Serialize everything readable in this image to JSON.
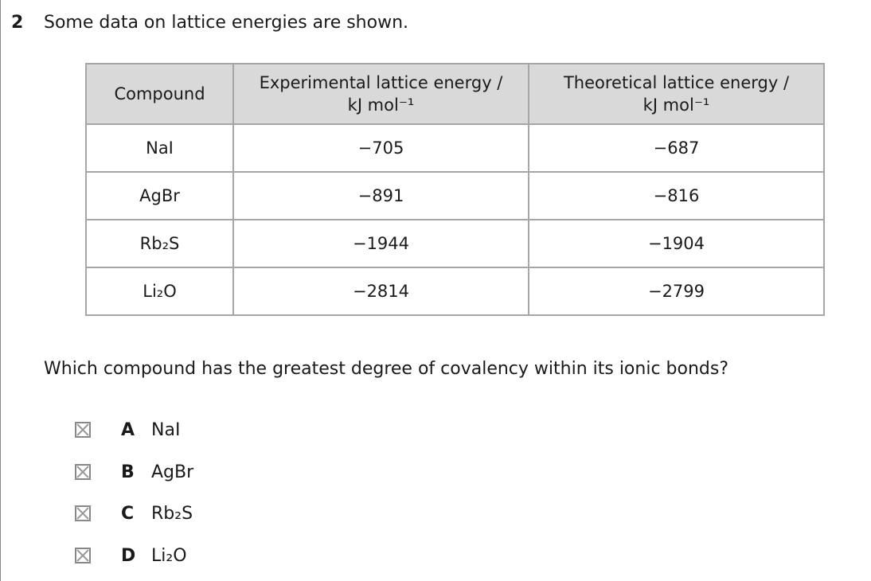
{
  "question": {
    "number": "2",
    "stem": "Some data on lattice energies are shown.",
    "prompt": "Which compound has the greatest degree of covalency within its ionic bonds?"
  },
  "table": {
    "header": [
      [
        "Compound"
      ],
      [
        "Experimental lattice energy /",
        "kJ mol⁻¹"
      ],
      [
        "Theoretical lattice energy /",
        "kJ mol⁻¹"
      ]
    ],
    "rows": [
      [
        "NaI",
        "−705",
        "−687"
      ],
      [
        "AgBr",
        "−891",
        "−816"
      ],
      [
        "Rb₂S",
        "−1944",
        "−1904"
      ],
      [
        "Li₂O",
        "−2814",
        "−2799"
      ]
    ]
  },
  "options": [
    {
      "letter": "A",
      "text": "NaI"
    },
    {
      "letter": "B",
      "text": "AgBr"
    },
    {
      "letter": "C",
      "text": "Rb₂S"
    },
    {
      "letter": "D",
      "text": "Li₂O"
    }
  ]
}
